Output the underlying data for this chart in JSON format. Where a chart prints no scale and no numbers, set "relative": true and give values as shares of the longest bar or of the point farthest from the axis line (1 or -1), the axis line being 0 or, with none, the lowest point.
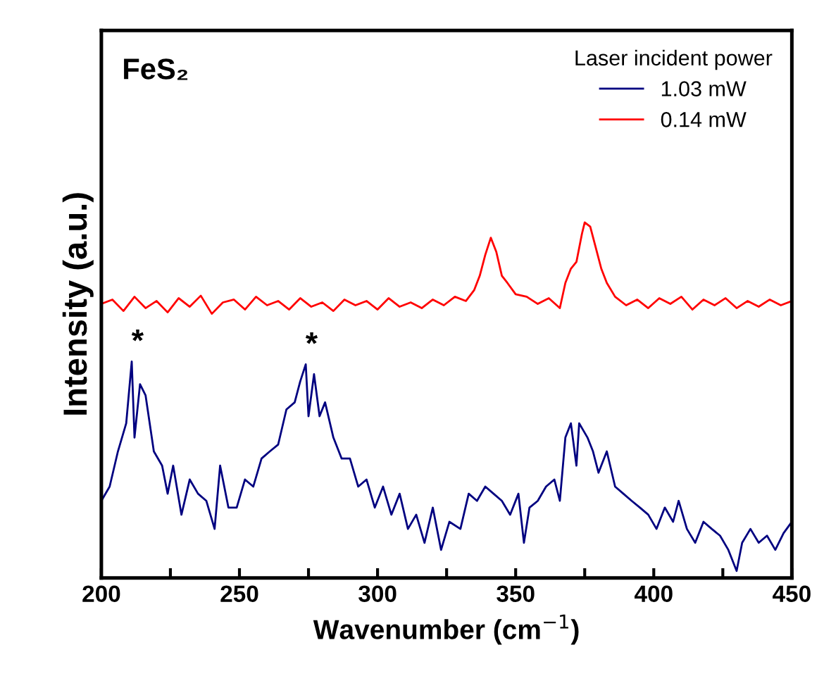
{
  "chart_data": {
    "type": "line",
    "xlabel": "Wavenumber (cm$^{−1}$)",
    "ylabel": "Intensity (a.u.)",
    "legend_title": "Laser incident power",
    "relative": true,
    "legend": "top right",
    "grid": false,
    "tick_labels": "x",
    "xlim": [
      200,
      450
    ],
    "xticks": [
      200,
      {
        "value": 225,
        "label": null
      },
      250,
      {
        "value": 275,
        "label": null
      },
      300,
      {
        "value": 325,
        "label": null
      },
      350,
      {
        "value": 375,
        "label": null
      },
      400,
      {
        "value": 425,
        "label": null
      },
      450
    ],
    "annotations": [
      "FeS₂",
      {
        "text": "*",
        "x": 211,
        "y": 0.609
      },
      {
        "text": "*",
        "x": 274,
        "y": 0.601
      }
    ],
    "series": [
      {
        "name": "1.03 mW",
        "color": "#000080",
        "x": [
          200,
          203,
          206,
          209,
          211,
          212,
          214,
          216,
          219,
          222,
          224,
          226,
          229,
          232,
          235,
          238,
          241,
          243,
          246,
          249,
          252,
          255,
          258,
          261,
          264,
          267,
          270,
          272,
          274,
          275,
          277,
          279,
          281,
          284,
          287,
          290,
          293,
          296,
          299,
          302,
          305,
          308,
          311,
          314,
          317,
          320,
          323,
          326,
          330,
          333,
          336,
          339,
          342,
          345,
          348,
          351,
          353,
          355,
          358,
          361,
          364,
          366,
          368,
          370,
          372,
          373,
          376,
          378,
          380,
          383,
          386,
          389,
          392,
          395,
          398,
          401,
          404,
          407,
          409,
          412,
          415,
          418,
          421,
          424,
          427,
          430,
          432,
          435,
          438,
          441,
          444,
          447,
          450
        ],
        "values": [
          0.217,
          0.257,
          0.356,
          0.435,
          0.609,
          0.395,
          0.545,
          0.514,
          0.356,
          0.316,
          0.237,
          0.316,
          0.178,
          0.277,
          0.237,
          0.217,
          0.138,
          0.316,
          0.198,
          0.198,
          0.277,
          0.257,
          0.336,
          0.356,
          0.375,
          0.474,
          0.494,
          0.553,
          0.601,
          0.455,
          0.573,
          0.455,
          0.494,
          0.395,
          0.336,
          0.336,
          0.257,
          0.277,
          0.198,
          0.257,
          0.178,
          0.237,
          0.138,
          0.178,
          0.099,
          0.198,
          0.079,
          0.158,
          0.138,
          0.237,
          0.217,
          0.257,
          0.237,
          0.217,
          0.178,
          0.237,
          0.099,
          0.198,
          0.217,
          0.257,
          0.277,
          0.217,
          0.395,
          0.435,
          0.316,
          0.435,
          0.395,
          0.356,
          0.296,
          0.356,
          0.257,
          0.237,
          0.217,
          0.198,
          0.178,
          0.138,
          0.198,
          0.158,
          0.217,
          0.138,
          0.099,
          0.158,
          0.138,
          0.119,
          0.079,
          0.02,
          0.099,
          0.138,
          0.099,
          0.119,
          0.079,
          0.126,
          0.158
        ]
      },
      {
        "name": "0.14 mW",
        "color": "#ff0000",
        "x": [
          200,
          204,
          208,
          212,
          216,
          220,
          224,
          228,
          232,
          236,
          240,
          244,
          248,
          252,
          256,
          260,
          264,
          268,
          272,
          276,
          280,
          284,
          288,
          292,
          296,
          300,
          304,
          308,
          312,
          316,
          320,
          324,
          328,
          332,
          335,
          337,
          339,
          341,
          343,
          345,
          347,
          350,
          354,
          358,
          362,
          366,
          368,
          370,
          372,
          374,
          375,
          377,
          379,
          381,
          383,
          386,
          390,
          394,
          398,
          402,
          406,
          410,
          414,
          418,
          422,
          426,
          430,
          434,
          438,
          442,
          446,
          450
        ],
        "values": [
          0.771,
          0.783,
          0.751,
          0.791,
          0.759,
          0.779,
          0.747,
          0.787,
          0.763,
          0.794,
          0.743,
          0.775,
          0.783,
          0.755,
          0.791,
          0.767,
          0.779,
          0.755,
          0.787,
          0.763,
          0.775,
          0.751,
          0.783,
          0.767,
          0.779,
          0.755,
          0.787,
          0.763,
          0.775,
          0.759,
          0.783,
          0.767,
          0.791,
          0.779,
          0.81,
          0.85,
          0.909,
          0.957,
          0.917,
          0.85,
          0.83,
          0.798,
          0.791,
          0.771,
          0.787,
          0.759,
          0.83,
          0.87,
          0.889,
          0.968,
          1.0,
          0.988,
          0.929,
          0.87,
          0.83,
          0.791,
          0.767,
          0.783,
          0.759,
          0.787,
          0.771,
          0.791,
          0.755,
          0.783,
          0.767,
          0.787,
          0.759,
          0.779,
          0.763,
          0.783,
          0.767,
          0.779
        ]
      }
    ]
  }
}
